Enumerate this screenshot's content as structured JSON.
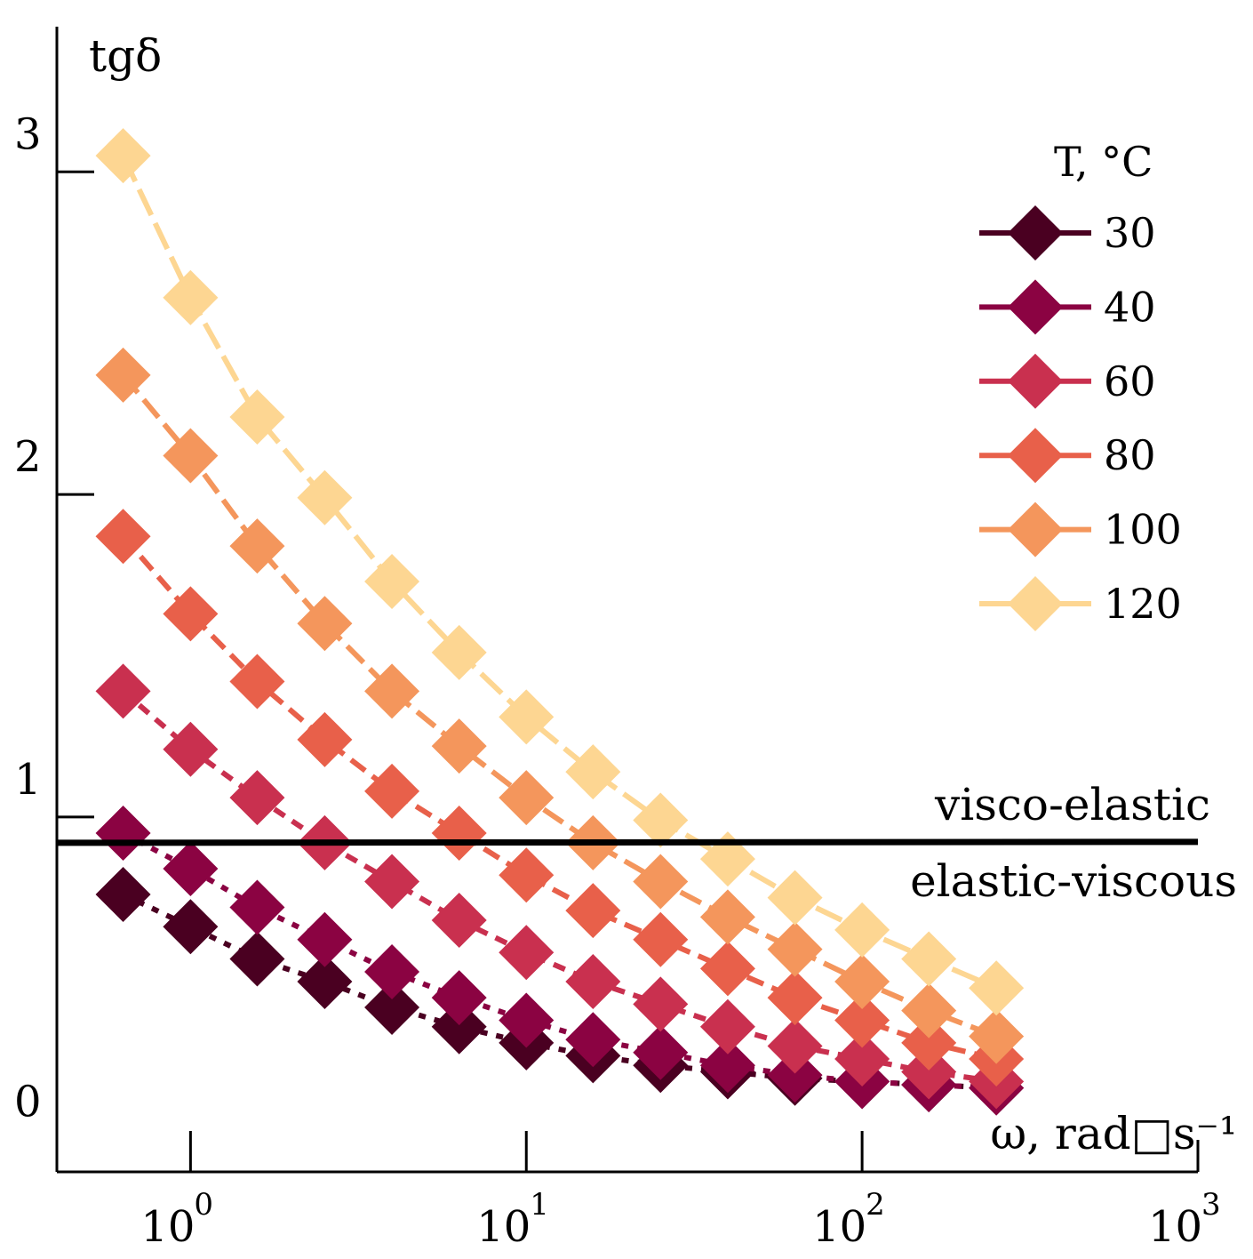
{
  "chart_data": {
    "type": "scatter",
    "xscale": "log",
    "xlim": [
      0.4,
      1000
    ],
    "ylim": [
      -0.1,
      3.45
    ],
    "ylabel": "tgδ",
    "xlabel": "ω, rad□s⁻¹",
    "yticks": [
      {
        "value": 0,
        "label": "0"
      },
      {
        "value": 1,
        "label": "1"
      },
      {
        "value": 2,
        "label": "2"
      },
      {
        "value": 3,
        "label": "3"
      }
    ],
    "xticks": [
      {
        "value": 1,
        "base": "10",
        "exp": "0"
      },
      {
        "value": 10,
        "base": "10",
        "exp": "1"
      },
      {
        "value": 100,
        "base": "10",
        "exp": "2"
      },
      {
        "value": 1000,
        "base": "10",
        "exp": "3"
      }
    ],
    "x": [
      0.63,
      1.0,
      1.58,
      2.51,
      3.98,
      6.31,
      10.0,
      15.8,
      25.1,
      39.8,
      63.1,
      100,
      158,
      251
    ],
    "legend_title": "T, °C",
    "series": [
      {
        "name": "30",
        "color": "#4a0021",
        "dash": "8,10",
        "values": [
          0.76,
          0.66,
          0.56,
          0.49,
          0.41,
          0.35,
          0.3,
          0.26,
          0.23,
          0.21,
          0.19,
          0.18,
          0.17,
          0.16
        ]
      },
      {
        "name": "40",
        "color": "#8b0342",
        "dash": "8,10",
        "values": [
          0.95,
          0.84,
          0.72,
          0.62,
          0.52,
          0.44,
          0.37,
          0.31,
          0.27,
          0.23,
          0.2,
          0.18,
          0.17,
          0.16
        ]
      },
      {
        "name": "60",
        "color": "#c9304f",
        "dash": "14,10",
        "values": [
          1.39,
          1.21,
          1.06,
          0.92,
          0.8,
          0.68,
          0.58,
          0.49,
          0.42,
          0.35,
          0.29,
          0.25,
          0.21,
          0.18
        ]
      },
      {
        "name": "80",
        "color": "#e8604a",
        "dash": "20,10",
        "values": [
          1.87,
          1.63,
          1.42,
          1.24,
          1.08,
          0.95,
          0.82,
          0.71,
          0.62,
          0.53,
          0.44,
          0.37,
          0.3,
          0.25
        ]
      },
      {
        "name": "100",
        "color": "#f4965c",
        "dash": "26,10",
        "values": [
          2.37,
          2.12,
          1.84,
          1.6,
          1.39,
          1.22,
          1.06,
          0.92,
          0.8,
          0.69,
          0.59,
          0.49,
          0.4,
          0.32
        ]
      },
      {
        "name": "120",
        "color": "#fdd692",
        "dash": "32,10",
        "values": [
          3.05,
          2.61,
          2.24,
          1.99,
          1.73,
          1.51,
          1.31,
          1.14,
          0.99,
          0.87,
          0.75,
          0.65,
          0.56,
          0.47
        ]
      }
    ],
    "threshold": {
      "y_start": 0.92,
      "y_end": 0.923,
      "label_above": "visco-elastic",
      "label_below": "elastic-viscous"
    }
  }
}
